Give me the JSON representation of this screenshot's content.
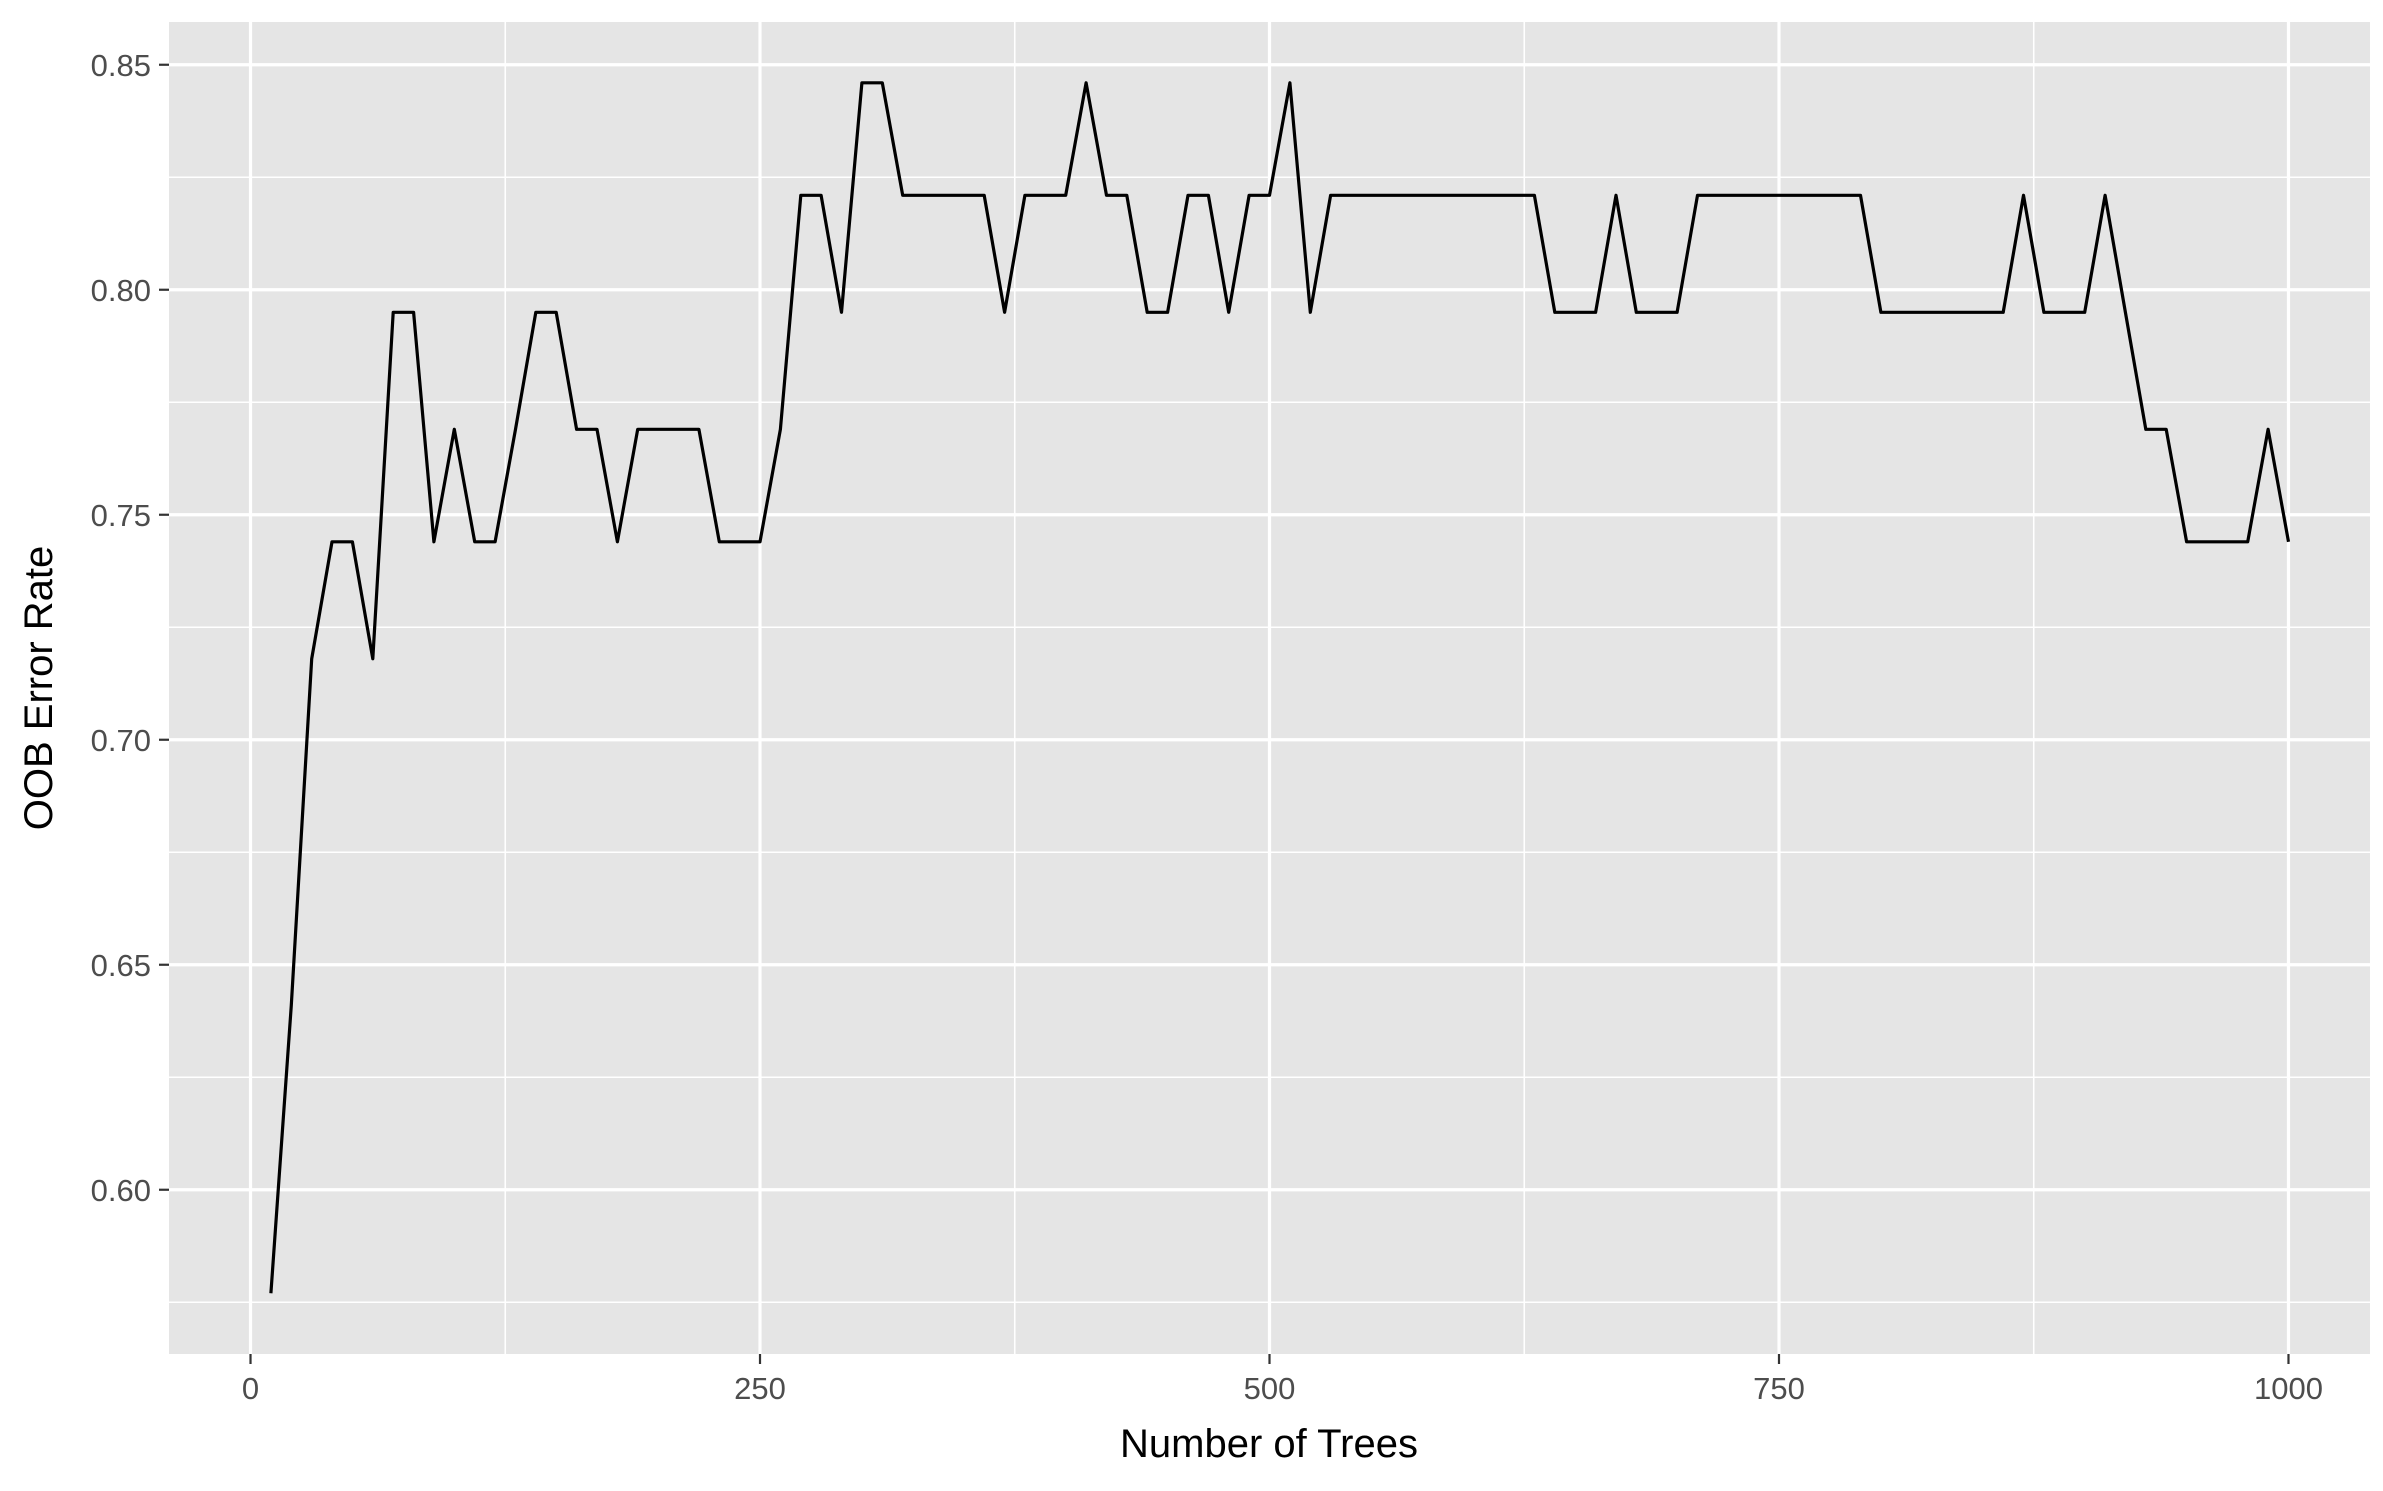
{
  "chart_data": {
    "type": "line",
    "title": "",
    "xlabel": "Number of Trees",
    "ylabel": "OOB Error Rate",
    "xlim": [
      -40,
      1040
    ],
    "ylim": [
      0.5635,
      0.8595
    ],
    "x_ticks": [
      0,
      250,
      500,
      750,
      1000
    ],
    "x_tick_labels": [
      "0",
      "250",
      "500",
      "750",
      "1000"
    ],
    "y_ticks": [
      0.6,
      0.65,
      0.7,
      0.75,
      0.8,
      0.85
    ],
    "y_tick_labels": [
      "0.60",
      "0.65",
      "0.70",
      "0.75",
      "0.80",
      "0.85"
    ],
    "grid": true,
    "legend": "none",
    "colors": {
      "panel_background": "#e5e5e5",
      "grid": "#ffffff",
      "line": "#000000",
      "tick_text": "#4d4d4d",
      "tick_mark": "#333333"
    },
    "series": [
      {
        "x": [
          10,
          20,
          30,
          40,
          50,
          60,
          70,
          80,
          90,
          100,
          110,
          120,
          130,
          140,
          150,
          160,
          170,
          180,
          190,
          200,
          210,
          220,
          230,
          240,
          250,
          260,
          270,
          280,
          290,
          300,
          310,
          320,
          330,
          340,
          350,
          360,
          370,
          380,
          390,
          400,
          410,
          420,
          430,
          440,
          450,
          460,
          470,
          480,
          490,
          500,
          510,
          520,
          530,
          540,
          550,
          560,
          570,
          580,
          590,
          600,
          610,
          620,
          630,
          640,
          650,
          660,
          670,
          680,
          690,
          700,
          710,
          720,
          730,
          740,
          750,
          760,
          770,
          780,
          790,
          800,
          810,
          820,
          830,
          840,
          850,
          860,
          870,
          880,
          890,
          900,
          910,
          920,
          930,
          940,
          950,
          960,
          970,
          980,
          990,
          1000
        ],
        "values": [
          0.577,
          0.641,
          0.718,
          0.744,
          0.744,
          0.718,
          0.795,
          0.795,
          0.744,
          0.769,
          0.744,
          0.744,
          0.769,
          0.795,
          0.795,
          0.769,
          0.769,
          0.744,
          0.769,
          0.769,
          0.769,
          0.769,
          0.744,
          0.744,
          0.744,
          0.769,
          0.821,
          0.821,
          0.795,
          0.846,
          0.846,
          0.821,
          0.821,
          0.821,
          0.821,
          0.821,
          0.795,
          0.821,
          0.821,
          0.821,
          0.846,
          0.821,
          0.821,
          0.795,
          0.795,
          0.821,
          0.821,
          0.795,
          0.821,
          0.821,
          0.846,
          0.795,
          0.821,
          0.821,
          0.821,
          0.821,
          0.821,
          0.821,
          0.821,
          0.821,
          0.821,
          0.821,
          0.821,
          0.795,
          0.795,
          0.795,
          0.821,
          0.795,
          0.795,
          0.795,
          0.821,
          0.821,
          0.821,
          0.821,
          0.821,
          0.821,
          0.821,
          0.821,
          0.821,
          0.795,
          0.795,
          0.795,
          0.795,
          0.795,
          0.795,
          0.795,
          0.821,
          0.795,
          0.795,
          0.795,
          0.821,
          0.795,
          0.769,
          0.769,
          0.744,
          0.744,
          0.744,
          0.744,
          0.769,
          0.744
        ]
      }
    ]
  }
}
